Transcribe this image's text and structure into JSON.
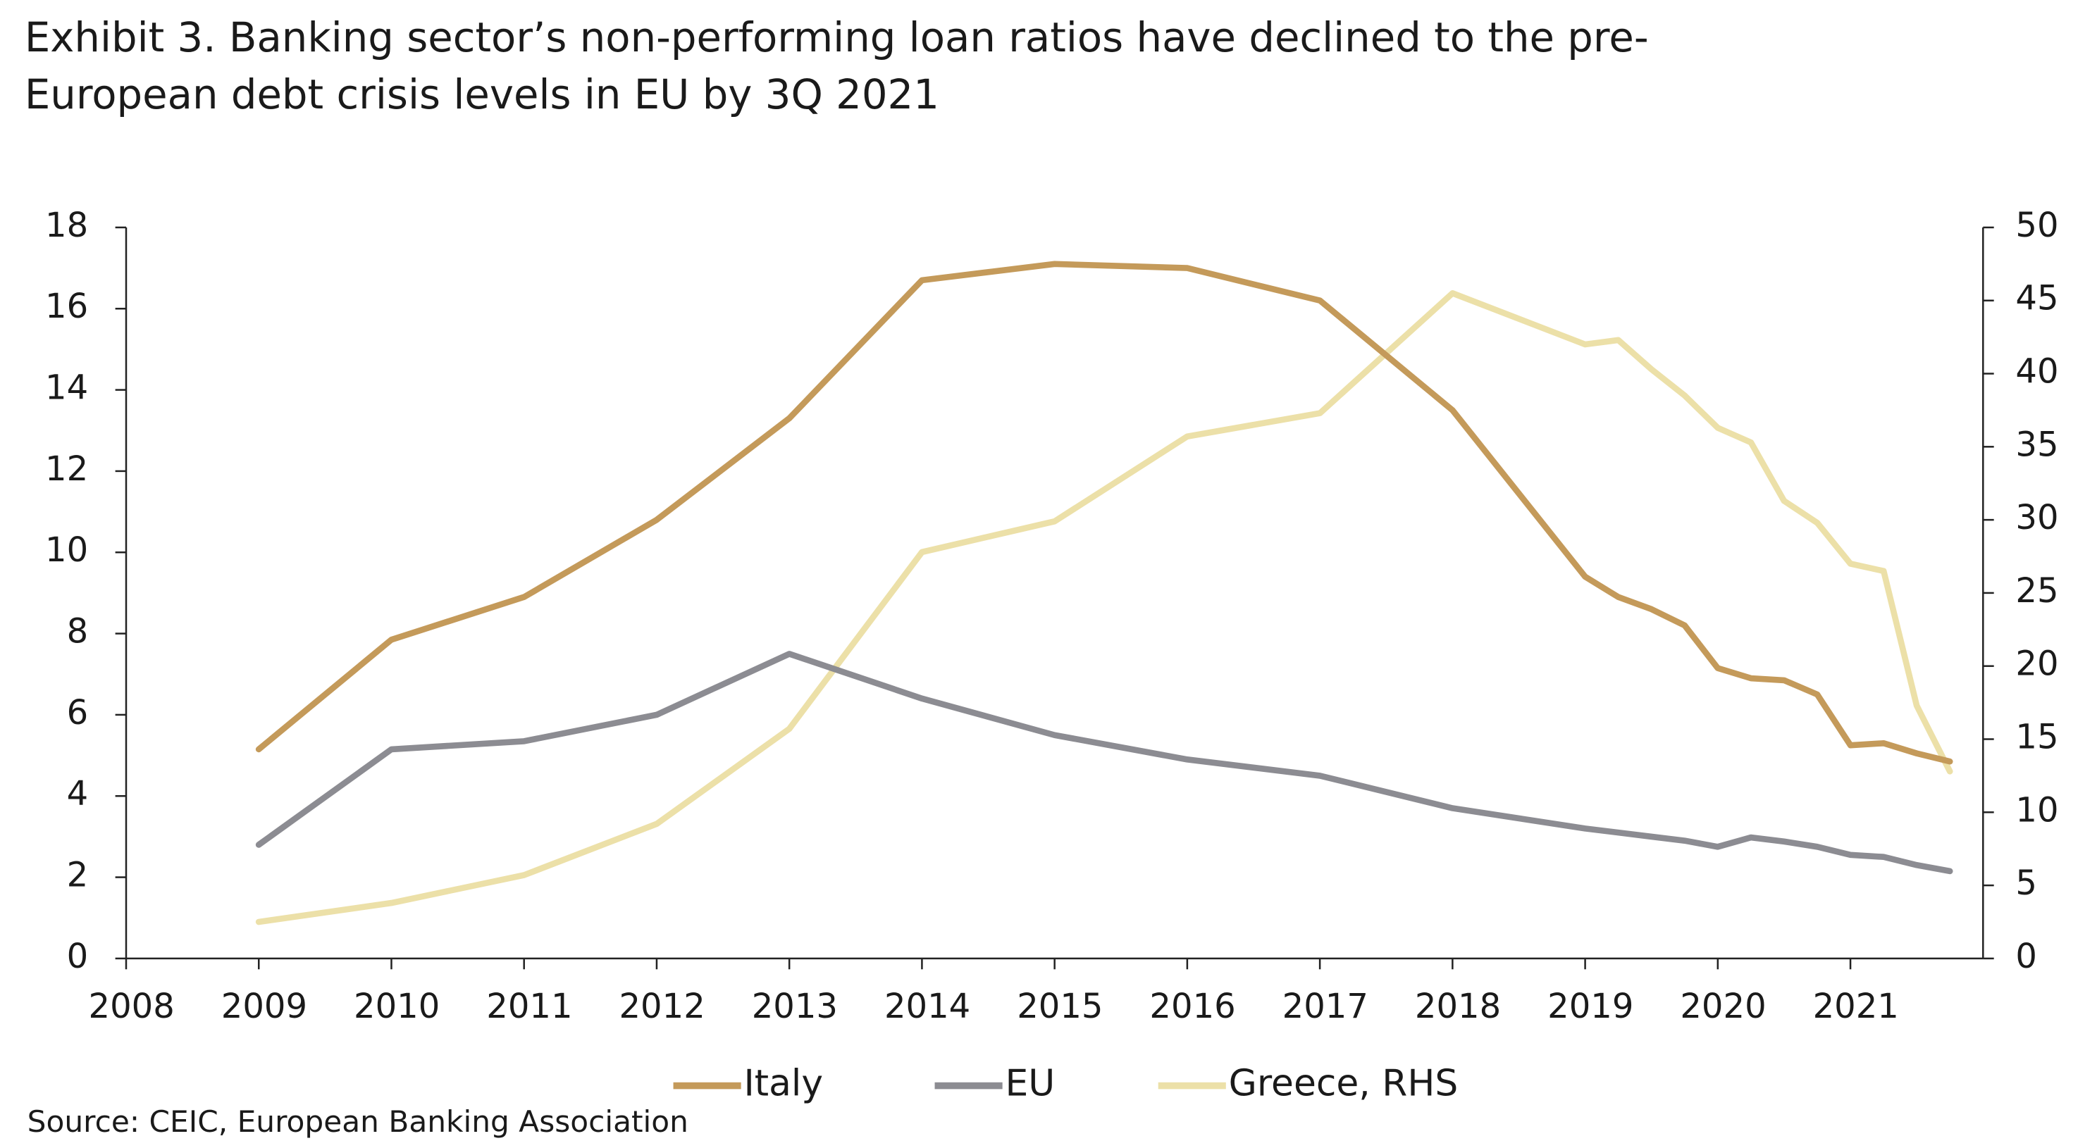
{
  "chart_data": {
    "type": "line",
    "title": "Exhibit 3. Banking sector’s non-performing loan ratios have declined to the pre-European debt crisis levels in EU by 3Q 2021",
    "source": "Source: CEIC, European Banking Association",
    "x": [
      2009,
      2010,
      2011,
      2012,
      2013,
      2014,
      2015,
      2016,
      2017,
      2018,
      2019,
      2019.25,
      2019.5,
      2019.75,
      2020,
      2020.25,
      2020.5,
      2020.75,
      2021,
      2021.25,
      2021.5,
      2021.75
    ],
    "xlim": [
      2008,
      2022
    ],
    "xticks": [
      2008,
      2009,
      2010,
      2011,
      2012,
      2013,
      2014,
      2015,
      2016,
      2017,
      2018,
      2019,
      2020,
      2021
    ],
    "ylim": [
      0,
      18
    ],
    "yticks": [
      0,
      2,
      4,
      6,
      8,
      10,
      12,
      14,
      16,
      18
    ],
    "y2lim": [
      0,
      50
    ],
    "y2ticks": [
      0,
      5,
      10,
      15,
      20,
      25,
      30,
      35,
      40,
      45,
      50
    ],
    "grid": false,
    "legend": "bottom",
    "series": [
      {
        "name": "Italy",
        "color": "#c49a5a",
        "values": [
          5.15,
          7.85,
          8.9,
          10.8,
          13.3,
          16.7,
          17.1,
          17.0,
          16.2,
          13.5,
          9.4,
          8.9,
          8.6,
          8.2,
          7.15,
          6.9,
          6.85,
          6.5,
          5.25,
          5.3,
          5.05,
          4.85
        ]
      },
      {
        "name": "EU",
        "color": "#8c8c92",
        "values": [
          2.8,
          5.15,
          5.35,
          6.0,
          7.5,
          6.4,
          5.5,
          4.9,
          4.5,
          3.7,
          3.2,
          3.1,
          3.0,
          2.9,
          2.75,
          2.98,
          2.88,
          2.75,
          2.55,
          2.5,
          2.3,
          2.15
        ]
      },
      {
        "name": "Greece, RHS",
        "color": "#ece0a8",
        "axis": "y2",
        "values": [
          2.5,
          3.8,
          5.7,
          9.2,
          15.7,
          27.8,
          29.9,
          35.7,
          37.3,
          45.5,
          42.0,
          42.3,
          40.3,
          38.5,
          36.3,
          35.3,
          31.3,
          29.8,
          27.0,
          26.5,
          17.3,
          12.8
        ]
      }
    ]
  }
}
